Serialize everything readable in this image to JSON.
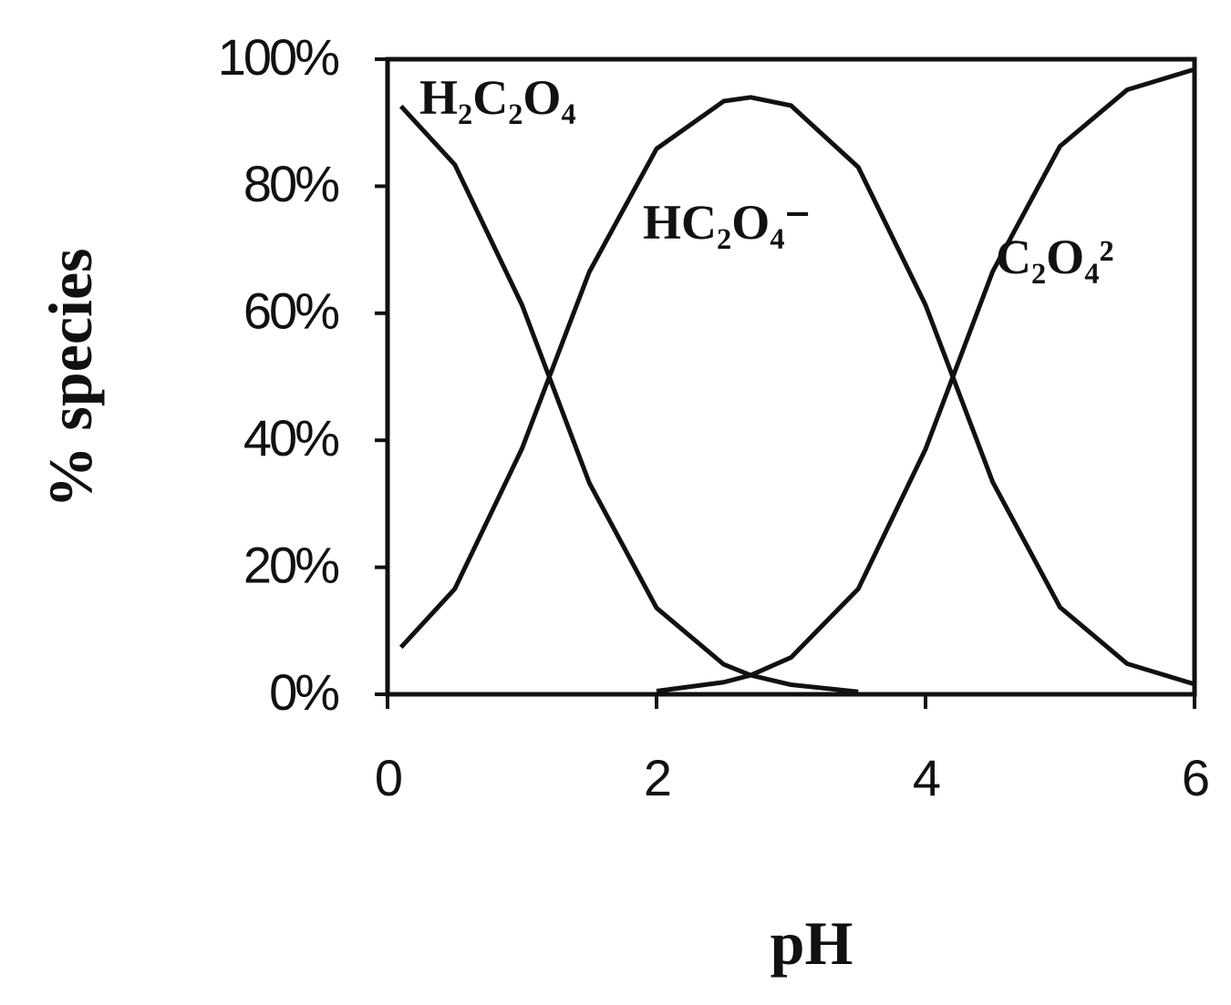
{
  "chart_data": {
    "type": "line",
    "x_label": "pH",
    "y_label": "% species",
    "x": [
      0.1,
      0.5,
      1,
      1.5,
      2,
      2.5,
      2.7,
      3,
      3.5,
      4,
      4.5,
      5,
      5.5,
      6
    ],
    "series": [
      {
        "name": "H₂C₂O₄",
        "color": "#111111",
        "values": [
          92.6,
          83.4,
          61.3,
          33.3,
          13.6,
          4.7,
          3.0,
          1.5,
          0.4,
          null,
          null,
          null,
          null,
          null
        ]
      },
      {
        "name": "HC₂O₄⁻",
        "color": "#111111",
        "values": [
          7.4,
          16.6,
          38.7,
          66.5,
          85.9,
          93.4,
          94.0,
          92.7,
          83.0,
          61.3,
          33.4,
          13.7,
          4.8,
          1.6
        ]
      },
      {
        "name": "C₂O₄²",
        "color": "#111111",
        "values": [
          null,
          null,
          null,
          null,
          0.5,
          1.9,
          3.0,
          5.8,
          16.6,
          38.6,
          66.6,
          86.3,
          95.2,
          98.4
        ]
      }
    ],
    "xlim": [
      0,
      6
    ],
    "xticks": [
      0,
      2,
      4,
      6
    ],
    "ylim": [
      0,
      100
    ],
    "yticks": [
      {
        "value": 0,
        "label": "0%"
      },
      {
        "value": 20,
        "label": "20%"
      },
      {
        "value": 40,
        "label": "40%"
      },
      {
        "value": 60,
        "label": "60%"
      },
      {
        "value": 80,
        "label": "80%"
      },
      {
        "value": 100,
        "label": "100%"
      }
    ],
    "grid": false
  }
}
